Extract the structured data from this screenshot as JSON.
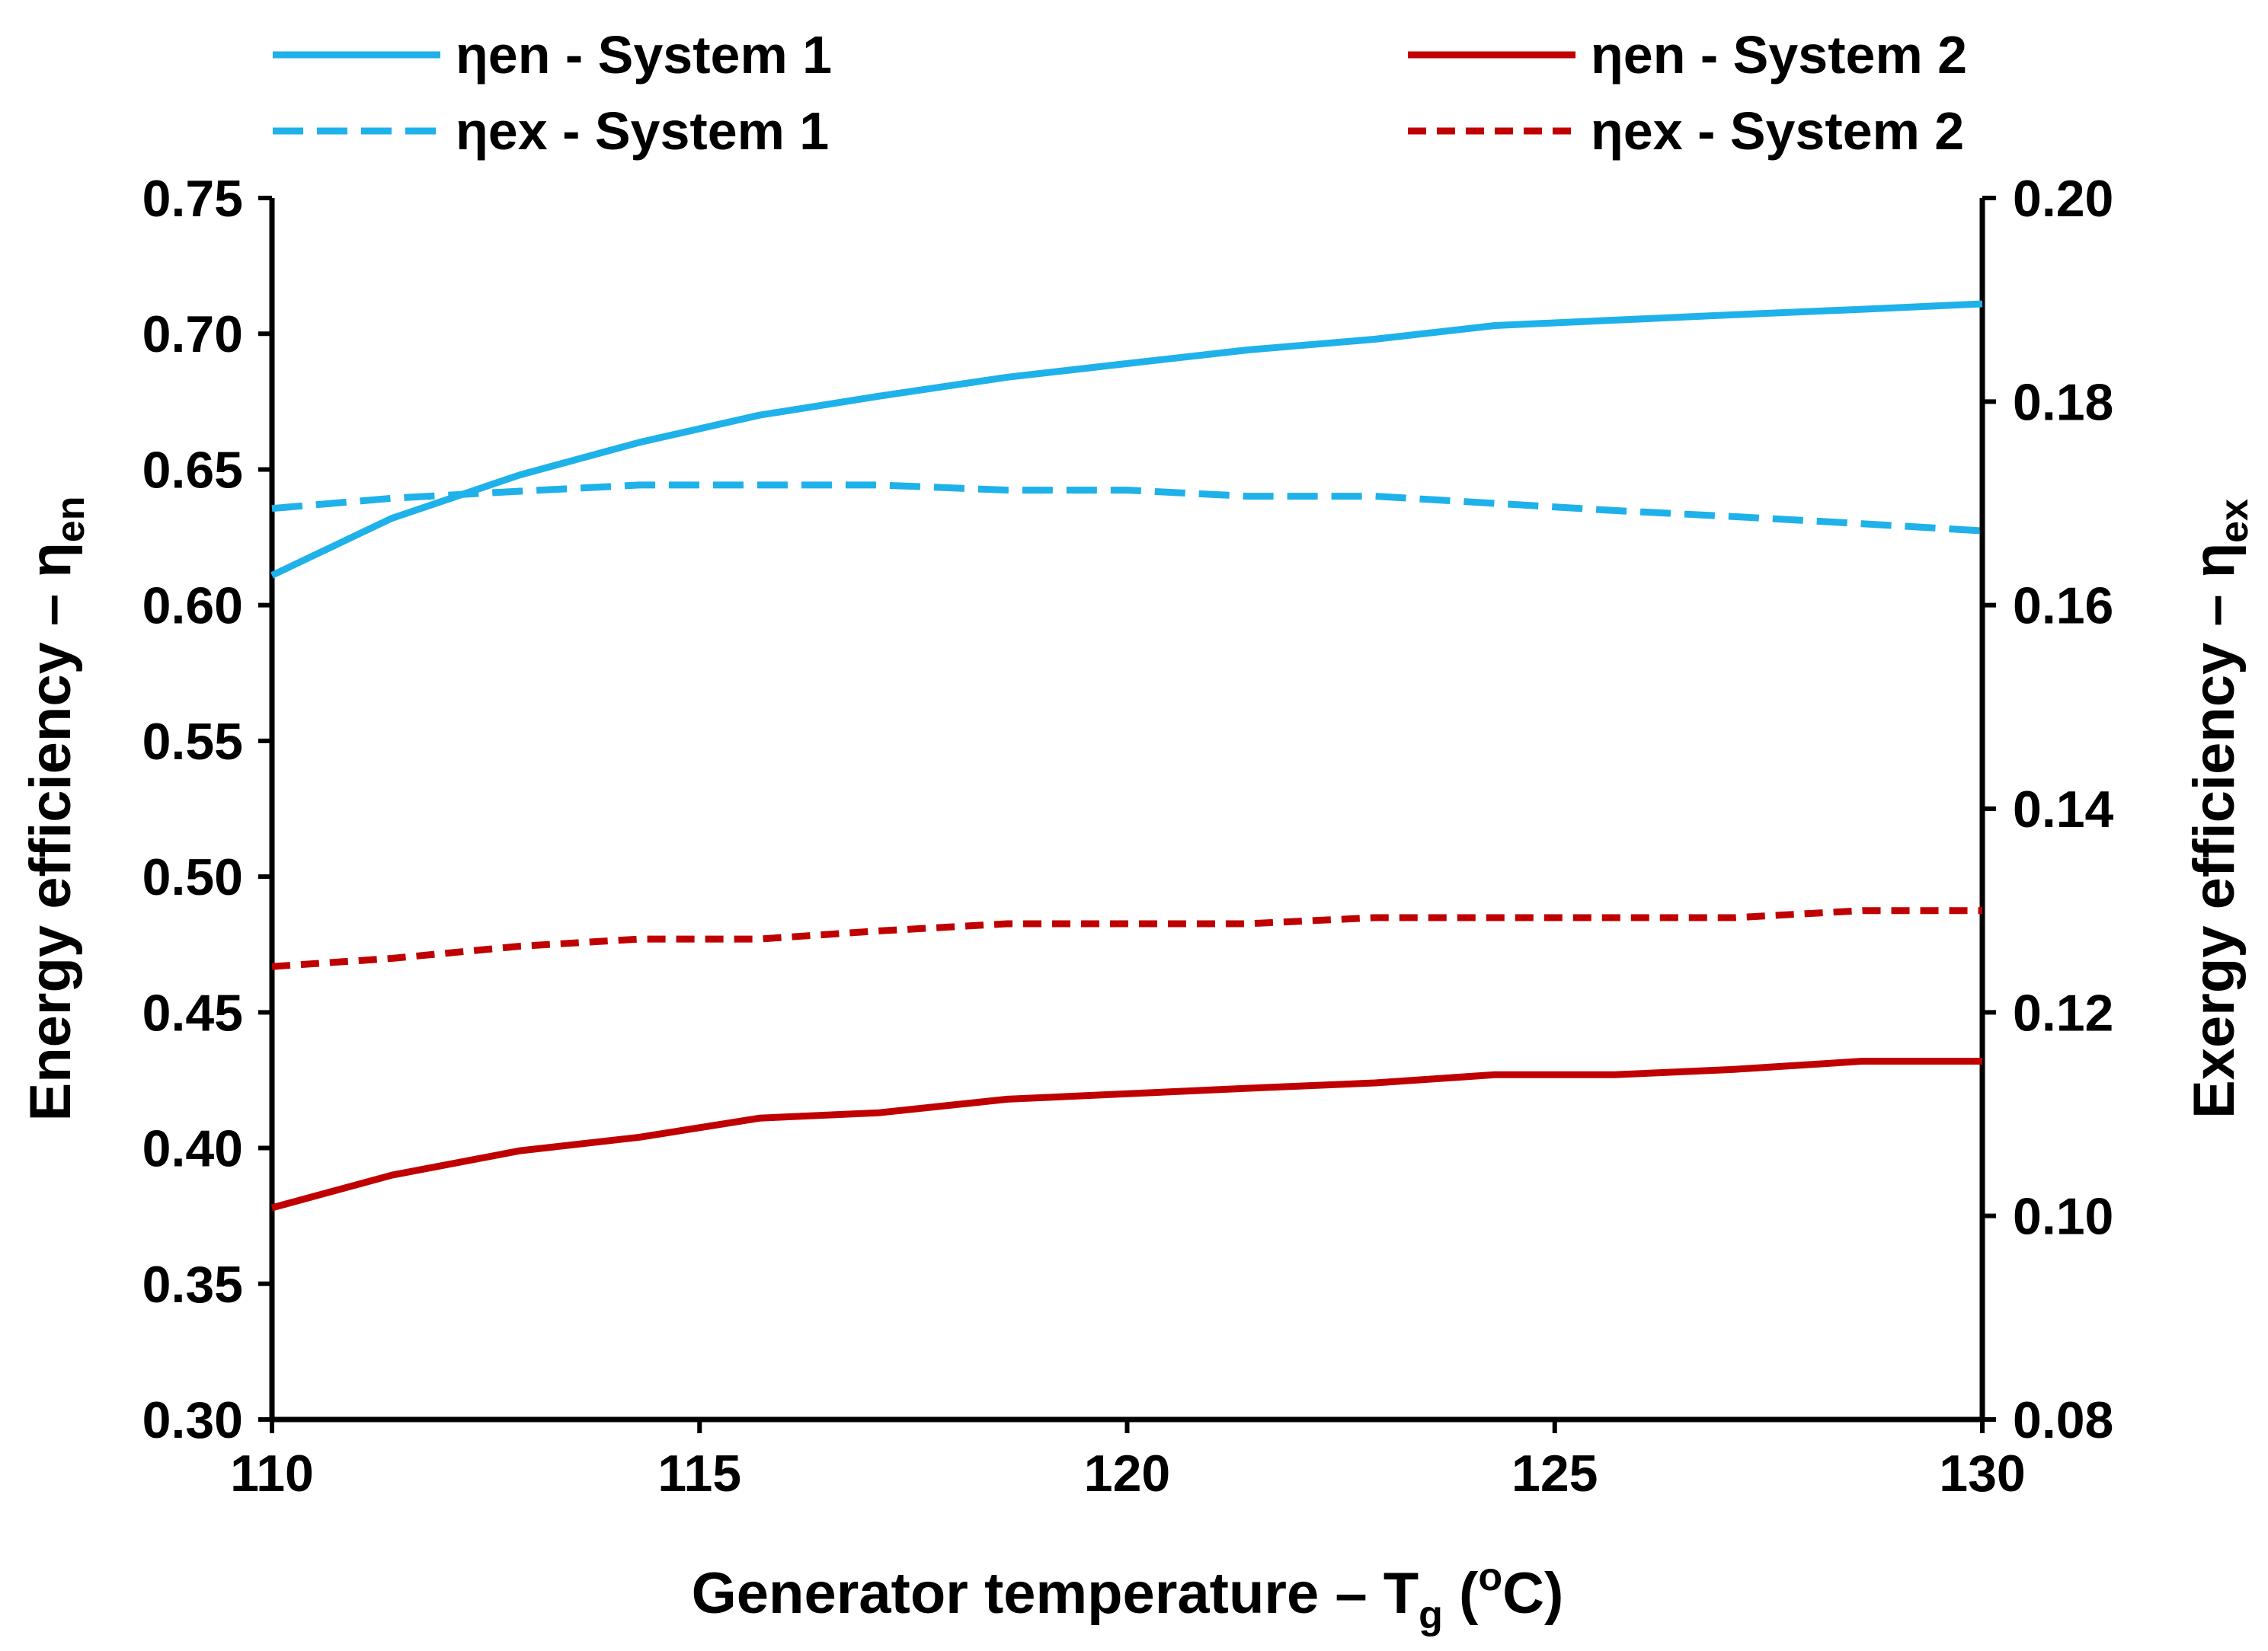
{
  "chart_data": {
    "type": "line",
    "title": "",
    "xlabel": {
      "main": "Generator temperature – T",
      "sub": "g",
      "post": " (",
      "sup": "o",
      "unit": "C)"
    },
    "ylabel_left": {
      "main": "Energy efficiency – η",
      "sub": "en"
    },
    "ylabel_right": {
      "main": "Exergy efficiency – η",
      "sub": "ex"
    },
    "xlim": [
      110,
      130
    ],
    "ylim_left": [
      0.3,
      0.75
    ],
    "ylim_right": [
      0.08,
      0.2
    ],
    "x_ticks": [
      "110",
      "115",
      "120",
      "125",
      "130"
    ],
    "y_left_ticks": [
      "0.30",
      "0.35",
      "0.40",
      "0.45",
      "0.50",
      "0.55",
      "0.60",
      "0.65",
      "0.70",
      "0.75"
    ],
    "y_right_ticks": [
      "0.08",
      "0.10",
      "0.12",
      "0.14",
      "0.16",
      "0.18",
      "0.20"
    ],
    "grid": false,
    "legend_position": "top",
    "series": [
      {
        "name": "ηen - System 1",
        "axis": "left",
        "style": "solid",
        "color": "#1FB1EA",
        "x": [
          110,
          111.4,
          112.9,
          114.3,
          115.7,
          117.1,
          118.6,
          120,
          121.4,
          122.9,
          124.3,
          125.7,
          127.1,
          128.6,
          130
        ],
        "y": [
          0.611,
          0.632,
          0.648,
          0.66,
          0.67,
          0.677,
          0.684,
          0.689,
          0.694,
          0.698,
          0.703,
          0.705,
          0.707,
          0.709,
          0.711
        ]
      },
      {
        "name": "ηex - System 1",
        "axis": "right",
        "style": "dashed",
        "color": "#1FB1EA",
        "x": [
          110,
          111.4,
          112.9,
          114.3,
          115.7,
          117.1,
          118.6,
          120,
          121.4,
          122.9,
          124.3,
          125.7,
          127.1,
          128.6,
          130
        ],
        "y": [
          0.1695,
          0.1705,
          0.1712,
          0.1718,
          0.1718,
          0.1718,
          0.1713,
          0.1713,
          0.1707,
          0.1707,
          0.17,
          0.1693,
          0.1687,
          0.168,
          0.1673
        ]
      },
      {
        "name": "ηen - System 2",
        "axis": "left",
        "style": "solid",
        "color": "#C00000",
        "x": [
          110,
          111.4,
          112.9,
          114.3,
          115.7,
          117.1,
          118.6,
          120,
          121.4,
          122.9,
          124.3,
          125.7,
          127.1,
          128.6,
          130
        ],
        "y": [
          0.378,
          0.39,
          0.399,
          0.404,
          0.411,
          0.413,
          0.418,
          0.42,
          0.422,
          0.424,
          0.427,
          0.427,
          0.429,
          0.432,
          0.432
        ]
      },
      {
        "name": "ηex - System 2",
        "axis": "right",
        "style": "dashed",
        "color": "#C00000",
        "x": [
          110,
          111.4,
          112.9,
          114.3,
          115.7,
          117.1,
          118.6,
          120,
          121.4,
          122.9,
          124.3,
          125.7,
          127.1,
          128.6,
          130
        ],
        "y": [
          0.1245,
          0.1253,
          0.1265,
          0.1272,
          0.1272,
          0.128,
          0.1287,
          0.1287,
          0.1287,
          0.1293,
          0.1293,
          0.1293,
          0.1293,
          0.13,
          0.13
        ]
      }
    ]
  }
}
